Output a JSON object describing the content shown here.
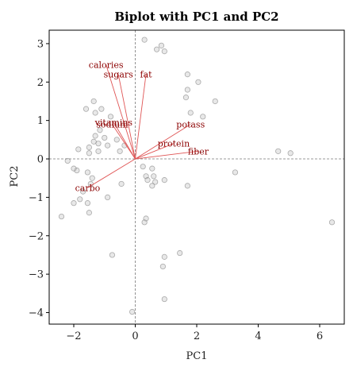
{
  "chart_data": {
    "type": "scatter",
    "title": "Biplot with PC1 and PC2",
    "xlabel": "PC1",
    "ylabel": "PC2",
    "xlim": [
      -2.8,
      6.8
    ],
    "ylim": [
      -4.3,
      3.35
    ],
    "xticks": [
      -2,
      0,
      2,
      4,
      6
    ],
    "yticks": [
      -4,
      -3,
      -2,
      -1,
      0,
      1,
      2,
      3
    ],
    "xtick_labels": [
      "−2",
      "0",
      "2",
      "4",
      "6"
    ],
    "ytick_labels": [
      "−4",
      "−3",
      "−2",
      "−1",
      "0",
      "1",
      "2",
      "3"
    ],
    "reference_lines": {
      "x": 0,
      "y": 0,
      "style": "dashed"
    },
    "grid": false,
    "colors": {
      "points": "#bdbdbd",
      "loading_lines": "#e05555",
      "loading_labels": "#8b0000"
    },
    "points": [
      {
        "x": 0.3,
        "y": 3.1
      },
      {
        "x": 0.7,
        "y": 2.85
      },
      {
        "x": 0.85,
        "y": 2.95
      },
      {
        "x": 0.95,
        "y": 2.8
      },
      {
        "x": 1.7,
        "y": 2.2
      },
      {
        "x": 2.05,
        "y": 2.0
      },
      {
        "x": 1.7,
        "y": 1.8
      },
      {
        "x": 1.65,
        "y": 1.6
      },
      {
        "x": 2.6,
        "y": 1.5
      },
      {
        "x": 1.8,
        "y": 1.2
      },
      {
        "x": 2.2,
        "y": 1.1
      },
      {
        "x": -1.35,
        "y": 1.5
      },
      {
        "x": -1.6,
        "y": 1.3
      },
      {
        "x": -1.3,
        "y": 1.2
      },
      {
        "x": -1.1,
        "y": 1.3
      },
      {
        "x": -0.8,
        "y": 1.1
      },
      {
        "x": -1.15,
        "y": 0.75
      },
      {
        "x": -1.3,
        "y": 0.6
      },
      {
        "x": -1.35,
        "y": 0.45
      },
      {
        "x": -1.2,
        "y": 0.4
      },
      {
        "x": -1.0,
        "y": 0.55
      },
      {
        "x": -0.9,
        "y": 0.35
      },
      {
        "x": -0.6,
        "y": 0.5
      },
      {
        "x": -1.5,
        "y": 0.3
      },
      {
        "x": -1.85,
        "y": 0.25
      },
      {
        "x": -1.5,
        "y": 0.15
      },
      {
        "x": -1.2,
        "y": 0.2
      },
      {
        "x": -0.5,
        "y": 0.2
      },
      {
        "x": -0.35,
        "y": 0.35
      },
      {
        "x": -2.2,
        "y": -0.05
      },
      {
        "x": -1.9,
        "y": -0.3
      },
      {
        "x": -2.0,
        "y": -0.25
      },
      {
        "x": -1.55,
        "y": -0.35
      },
      {
        "x": -1.4,
        "y": -0.5
      },
      {
        "x": -1.45,
        "y": -0.65
      },
      {
        "x": -1.7,
        "y": -0.85
      },
      {
        "x": -1.8,
        "y": -1.05
      },
      {
        "x": -2.0,
        "y": -1.15
      },
      {
        "x": -1.55,
        "y": -1.15
      },
      {
        "x": -1.5,
        "y": -1.4
      },
      {
        "x": -2.4,
        "y": -1.5
      },
      {
        "x": -0.9,
        "y": -1.0
      },
      {
        "x": -0.45,
        "y": -0.65
      },
      {
        "x": 0.25,
        "y": -0.2
      },
      {
        "x": 0.55,
        "y": -0.25
      },
      {
        "x": 0.35,
        "y": -0.45
      },
      {
        "x": 0.6,
        "y": -0.45
      },
      {
        "x": 0.4,
        "y": -0.55
      },
      {
        "x": 0.65,
        "y": -0.6
      },
      {
        "x": 0.55,
        "y": -0.7
      },
      {
        "x": 0.95,
        "y": -0.55
      },
      {
        "x": 1.7,
        "y": -0.7
      },
      {
        "x": 3.25,
        "y": -0.35
      },
      {
        "x": 4.65,
        "y": 0.2
      },
      {
        "x": 5.05,
        "y": 0.15
      },
      {
        "x": 6.4,
        "y": -1.65
      },
      {
        "x": 0.3,
        "y": -1.65
      },
      {
        "x": 0.35,
        "y": -1.55
      },
      {
        "x": -0.75,
        "y": -2.5
      },
      {
        "x": 1.45,
        "y": -2.45
      },
      {
        "x": 0.95,
        "y": -2.55
      },
      {
        "x": 0.9,
        "y": -2.8
      },
      {
        "x": 0.95,
        "y": -3.65
      },
      {
        "x": -0.1,
        "y": -3.98
      }
    ],
    "loadings": [
      {
        "label": "calories",
        "x": -0.95,
        "y": 2.45
      },
      {
        "label": "sugars",
        "x": -0.55,
        "y": 2.2
      },
      {
        "label": "fat",
        "x": 0.35,
        "y": 2.2
      },
      {
        "label": "vitamins",
        "x": -0.7,
        "y": 0.95
      },
      {
        "label": "sodium",
        "x": -0.75,
        "y": 0.9
      },
      {
        "label": "potass",
        "x": 1.8,
        "y": 0.9
      },
      {
        "label": "protein",
        "x": 1.25,
        "y": 0.4
      },
      {
        "label": "fiber",
        "x": 2.05,
        "y": 0.2
      },
      {
        "label": "carbo",
        "x": -1.55,
        "y": -0.75
      }
    ]
  }
}
